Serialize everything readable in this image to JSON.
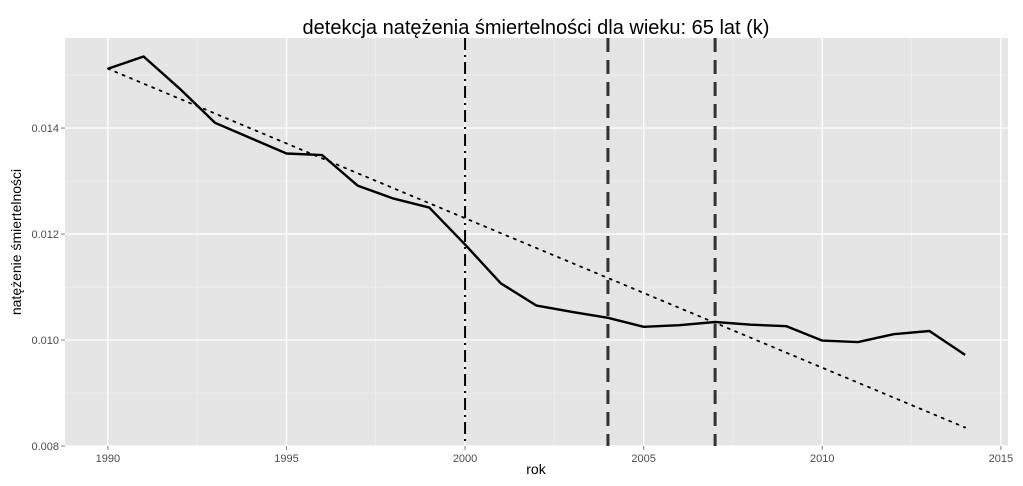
{
  "chart_data": {
    "type": "line",
    "title": "detekcja natężenia śmiertelności dla wieku: 65 lat (k)",
    "xlabel": "rok",
    "ylabel": "natężenie śmiertelności",
    "xlim": [
      1988.8,
      2015.2
    ],
    "ylim": [
      0.008,
      0.0157
    ],
    "x_ticks": [
      1990,
      1995,
      2000,
      2005,
      2010,
      2015
    ],
    "x_tick_labels": [
      "1990",
      "1995",
      "2000",
      "2005",
      "2010",
      "2015"
    ],
    "y_ticks": [
      0.008,
      0.01,
      0.012,
      0.014
    ],
    "y_tick_labels": [
      "0.008",
      "0.010",
      "0.012",
      "0.014"
    ],
    "grid": true,
    "background": "#e5e5e5",
    "series": [
      {
        "style": "solid",
        "color": "#000000",
        "x": [
          1990,
          1991,
          1992,
          1993,
          1994,
          1995,
          1996,
          1997,
          1998,
          1999,
          2000,
          2001,
          2002,
          2003,
          2004,
          2005,
          2006,
          2007,
          2008,
          2009,
          2010,
          2011,
          2012,
          2013,
          2014
        ],
        "values": [
          0.01512,
          0.01535,
          0.01475,
          0.0141,
          0.01381,
          0.01352,
          0.01349,
          0.01291,
          0.01267,
          0.0125,
          0.0118,
          0.01107,
          0.01065,
          0.01053,
          0.01042,
          0.01025,
          0.01028,
          0.01034,
          0.01029,
          0.01026,
          0.00999,
          0.00996,
          0.01011,
          0.01017,
          0.00972
        ]
      },
      {
        "style": "dotted",
        "color": "#000000",
        "x": [
          1990,
          2014
        ],
        "values": [
          0.01512,
          0.00835
        ]
      }
    ],
    "vlines": [
      {
        "x": 2000,
        "style": "dashdot",
        "color": "#000000"
      },
      {
        "x": 2004,
        "style": "dashed",
        "color": "#333333"
      },
      {
        "x": 2007,
        "style": "dashed",
        "color": "#333333"
      }
    ]
  }
}
